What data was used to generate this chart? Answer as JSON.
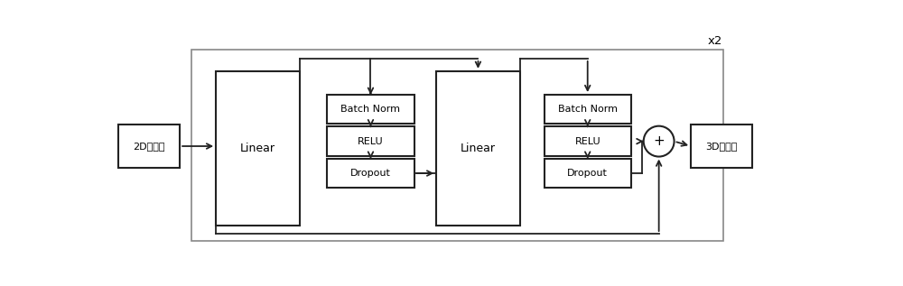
{
  "bg_color": "#ffffff",
  "box_color": "#ffffff",
  "box_edge_color": "#222222",
  "outer_edge_color": "#888888",
  "text_color": "#000000",
  "fig_width": 10.0,
  "fig_height": 3.17,
  "x2_label": "x2",
  "input_label": "2D关节点",
  "output_label": "3D关节点",
  "linear1_label": "Linear",
  "linear2_label": "Linear",
  "bn1_label": "Batch Norm",
  "relu1_label": "RELU",
  "dropout1_label": "Dropout",
  "bn2_label": "Batch Norm",
  "relu2_label": "RELU",
  "dropout2_label": "Dropout",
  "plus_label": "+"
}
